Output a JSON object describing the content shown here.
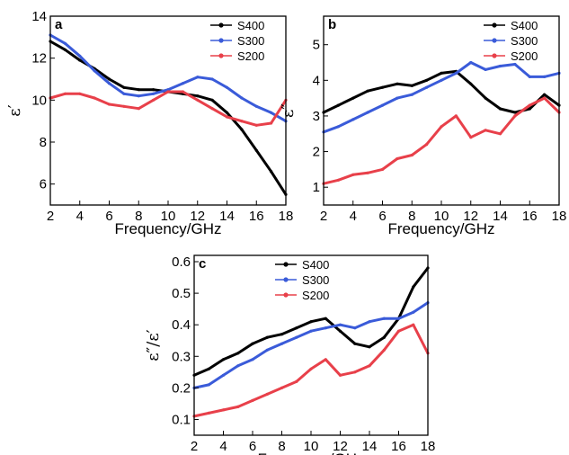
{
  "chart_data": [
    {
      "type": "line",
      "panel_label": "a",
      "xlabel": "Frequency/GHz",
      "ylabel": "ε′",
      "xlim": [
        2,
        18
      ],
      "ylim": [
        5,
        14
      ],
      "xticks": [
        2,
        4,
        6,
        8,
        10,
        12,
        14,
        16,
        18
      ],
      "yticks": [
        6,
        8,
        10,
        12,
        14
      ],
      "legend_position": "top-right",
      "series": [
        {
          "name": "S400",
          "color": "#000000",
          "x": [
            2,
            3,
            4,
            5,
            6,
            7,
            8,
            9,
            10,
            11,
            12,
            13,
            14,
            15,
            16,
            17,
            18
          ],
          "y": [
            12.8,
            12.4,
            11.9,
            11.5,
            11.0,
            10.6,
            10.5,
            10.5,
            10.4,
            10.3,
            10.2,
            10.0,
            9.4,
            8.6,
            7.6,
            6.6,
            5.5
          ]
        },
        {
          "name": "S300",
          "color": "#3a5bd9",
          "x": [
            2,
            3,
            4,
            5,
            6,
            7,
            8,
            9,
            10,
            11,
            12,
            13,
            14,
            15,
            16,
            17,
            18
          ],
          "y": [
            13.1,
            12.7,
            12.1,
            11.4,
            10.8,
            10.3,
            10.2,
            10.3,
            10.5,
            10.8,
            11.1,
            11.0,
            10.6,
            10.1,
            9.7,
            9.4,
            9.0
          ]
        },
        {
          "name": "S200",
          "color": "#e8404a",
          "x": [
            2,
            3,
            4,
            5,
            6,
            7,
            8,
            9,
            10,
            11,
            12,
            13,
            14,
            15,
            16,
            17,
            18
          ],
          "y": [
            10.1,
            10.3,
            10.3,
            10.1,
            9.8,
            9.7,
            9.6,
            10.0,
            10.4,
            10.4,
            10.0,
            9.6,
            9.2,
            9.0,
            8.8,
            8.9,
            10.0
          ]
        }
      ]
    },
    {
      "type": "line",
      "panel_label": "b",
      "xlabel": "Frequency/GHz",
      "ylabel": "ε″",
      "xlim": [
        2,
        18
      ],
      "ylim": [
        0.5,
        5.8
      ],
      "xticks": [
        2,
        4,
        6,
        8,
        10,
        12,
        14,
        16,
        18
      ],
      "yticks": [
        1,
        2,
        3,
        4,
        5
      ],
      "legend_position": "top-right",
      "series": [
        {
          "name": "S400",
          "color": "#000000",
          "x": [
            2,
            3,
            4,
            5,
            6,
            7,
            8,
            9,
            10,
            11,
            12,
            13,
            14,
            15,
            16,
            17,
            18
          ],
          "y": [
            3.1,
            3.3,
            3.5,
            3.7,
            3.8,
            3.9,
            3.85,
            4.0,
            4.2,
            4.25,
            3.9,
            3.5,
            3.2,
            3.1,
            3.2,
            3.6,
            3.3
          ]
        },
        {
          "name": "S300",
          "color": "#3a5bd9",
          "x": [
            2,
            3,
            4,
            5,
            6,
            7,
            8,
            9,
            10,
            11,
            12,
            13,
            14,
            15,
            16,
            17,
            18
          ],
          "y": [
            2.55,
            2.7,
            2.9,
            3.1,
            3.3,
            3.5,
            3.6,
            3.8,
            4.0,
            4.2,
            4.5,
            4.3,
            4.4,
            4.45,
            4.1,
            4.1,
            4.2
          ]
        },
        {
          "name": "S200",
          "color": "#e8404a",
          "x": [
            2,
            3,
            4,
            5,
            6,
            7,
            8,
            9,
            10,
            11,
            12,
            13,
            14,
            15,
            16,
            17,
            18
          ],
          "y": [
            1.1,
            1.2,
            1.35,
            1.4,
            1.5,
            1.8,
            1.9,
            2.2,
            2.7,
            3.0,
            2.4,
            2.6,
            2.5,
            3.0,
            3.3,
            3.5,
            3.1
          ]
        }
      ]
    },
    {
      "type": "line",
      "panel_label": "c",
      "xlabel": "Frequency/GHz",
      "ylabel": "ε″/ε′",
      "xlim": [
        2,
        18
      ],
      "ylim": [
        0.05,
        0.62
      ],
      "xticks": [
        2,
        4,
        6,
        8,
        10,
        12,
        14,
        16,
        18
      ],
      "yticks": [
        0.1,
        0.2,
        0.3,
        0.4,
        0.5,
        0.6
      ],
      "legend_position": "top-left",
      "series": [
        {
          "name": "S400",
          "color": "#000000",
          "x": [
            2,
            3,
            4,
            5,
            6,
            7,
            8,
            9,
            10,
            11,
            12,
            13,
            14,
            15,
            16,
            17,
            18
          ],
          "y": [
            0.24,
            0.26,
            0.29,
            0.31,
            0.34,
            0.36,
            0.37,
            0.39,
            0.41,
            0.42,
            0.38,
            0.34,
            0.33,
            0.36,
            0.42,
            0.52,
            0.58
          ]
        },
        {
          "name": "S300",
          "color": "#3a5bd9",
          "x": [
            2,
            3,
            4,
            5,
            6,
            7,
            8,
            9,
            10,
            11,
            12,
            13,
            14,
            15,
            16,
            17,
            18
          ],
          "y": [
            0.2,
            0.21,
            0.24,
            0.27,
            0.29,
            0.32,
            0.34,
            0.36,
            0.38,
            0.39,
            0.4,
            0.39,
            0.41,
            0.42,
            0.42,
            0.44,
            0.47
          ]
        },
        {
          "name": "S200",
          "color": "#e8404a",
          "x": [
            2,
            3,
            4,
            5,
            6,
            7,
            8,
            9,
            10,
            11,
            12,
            13,
            14,
            15,
            16,
            17,
            18
          ],
          "y": [
            0.11,
            0.12,
            0.13,
            0.14,
            0.16,
            0.18,
            0.2,
            0.22,
            0.26,
            0.29,
            0.24,
            0.25,
            0.27,
            0.32,
            0.38,
            0.4,
            0.31
          ]
        }
      ]
    }
  ]
}
